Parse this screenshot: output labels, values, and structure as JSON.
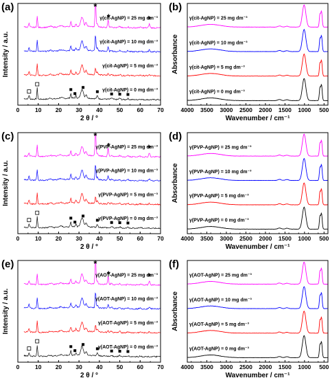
{
  "chart_data": [
    {
      "panel": "(a)",
      "type": "line",
      "xlabel": "2 θ / °",
      "ylabel": "Intensity / a.u.",
      "xlim": [
        0,
        70
      ],
      "xticks": [
        0,
        10,
        20,
        30,
        40,
        50,
        60,
        70
      ],
      "series": [
        {
          "name": "γ(cit-AgNP) = 0 mg dm⁻³",
          "color": "#000000"
        },
        {
          "name": "γ(cit-AgNP) = 5 mg dm⁻³",
          "color": "#ff0000"
        },
        {
          "name": "γ(cit-AgNP) = 10 mg dm⁻³",
          "color": "#0000ff"
        },
        {
          "name": "γ(cit-AgNP) = 25 mg dm⁻³",
          "color": "#ff00ff"
        }
      ]
    },
    {
      "panel": "(b)",
      "type": "line",
      "xlabel": "Wavenumber / cm⁻¹",
      "ylabel": "Absorbance",
      "xlim": [
        4000,
        400
      ],
      "xticks": [
        4000,
        3500,
        3000,
        2500,
        2000,
        1500,
        1000,
        500
      ],
      "series": [
        {
          "name": "γ(cit-AgNP) = 0 mg dm⁻³",
          "color": "#000000"
        },
        {
          "name": "γ(cit-AgNP) = 5 mg dm⁻³",
          "color": "#ff0000"
        },
        {
          "name": "γ(cit-AgNP) = 10 mg dm⁻³",
          "color": "#0000ff"
        },
        {
          "name": "γ(cit-AgNP) = 25 mg dm⁻³",
          "color": "#ff00ff"
        }
      ]
    },
    {
      "panel": "(c)",
      "type": "line",
      "xlabel": "2 θ / °",
      "ylabel": "Intensity / a.u.",
      "xlim": [
        0,
        70
      ],
      "xticks": [
        0,
        10,
        20,
        30,
        40,
        50,
        60,
        70
      ],
      "series": [
        {
          "name": "γ(PVP-AgNP) = 0 mg dm⁻³",
          "color": "#000000"
        },
        {
          "name": "γ(PVP-AgNP) = 5 mg dm⁻³",
          "color": "#ff0000"
        },
        {
          "name": "γ(PVP-AgNP) = 10 mg dm⁻³",
          "color": "#0000ff"
        },
        {
          "name": "γ(PVP-AgNP) = 25 mg dm⁻³",
          "color": "#ff00ff"
        }
      ]
    },
    {
      "panel": "(d)",
      "type": "line",
      "xlabel": "Wavenumber / cm⁻¹",
      "ylabel": "Absorbance",
      "xlim": [
        4000,
        400
      ],
      "xticks": [
        4000,
        3500,
        3000,
        2500,
        2000,
        1500,
        1000,
        500
      ],
      "series": [
        {
          "name": "γ(PVP-AgNP) = 0 mg dm⁻³",
          "color": "#000000"
        },
        {
          "name": "γ(PVP-AgNP) = 5 mg dm⁻³",
          "color": "#ff0000"
        },
        {
          "name": "γ(PVP-AgNP) = 10 mg dm⁻³",
          "color": "#0000ff"
        },
        {
          "name": "γ(PVP-AgNP) = 25 mg dm⁻³",
          "color": "#ff00ff"
        }
      ]
    },
    {
      "panel": "(e)",
      "type": "line",
      "xlabel": "2 θ / °",
      "ylabel": "Intensity / a.u.",
      "xlim": [
        0,
        70
      ],
      "xticks": [
        0,
        10,
        20,
        30,
        40,
        50,
        60,
        70
      ],
      "series": [
        {
          "name": "γ(AOT-AgNP) = 0 mg dm⁻³",
          "color": "#000000"
        },
        {
          "name": "γ(AOT-AgNP) = 5 mg dm⁻³",
          "color": "#ff0000"
        },
        {
          "name": "γ(AOT-AgNP) = 10 mg dm⁻³",
          "color": "#0000ff"
        },
        {
          "name": "γ(AOT-AgNP) = 25 mg dm⁻³",
          "color": "#ff00ff"
        }
      ]
    },
    {
      "panel": "(f)",
      "type": "line",
      "xlabel": "Wavenumber / cm⁻¹",
      "ylabel": "Absorbance",
      "xlim": [
        4000,
        400
      ],
      "xticks": [
        4000,
        3500,
        3000,
        2500,
        2000,
        1500,
        1000,
        500
      ],
      "series": [
        {
          "name": "γ(AOT-AgNP) = 0 mg dm⁻³",
          "color": "#000000"
        },
        {
          "name": "γ(AOT-AgNP) = 5 mg dm⁻³",
          "color": "#ff0000"
        },
        {
          "name": "γ(AOT-AgNP) = 10 mg dm⁻³",
          "color": "#0000ff"
        },
        {
          "name": "γ(AOT-AgNP) = 25 mg dm⁻³",
          "color": "#ff00ff"
        }
      ]
    }
  ],
  "xrd_markers": {
    "open_square": [
      5.5,
      9.5
    ],
    "filled_square": [
      26,
      28,
      32,
      39,
      46,
      50,
      54
    ],
    "asterisk": [
      38,
      44.5,
      64.5
    ]
  }
}
